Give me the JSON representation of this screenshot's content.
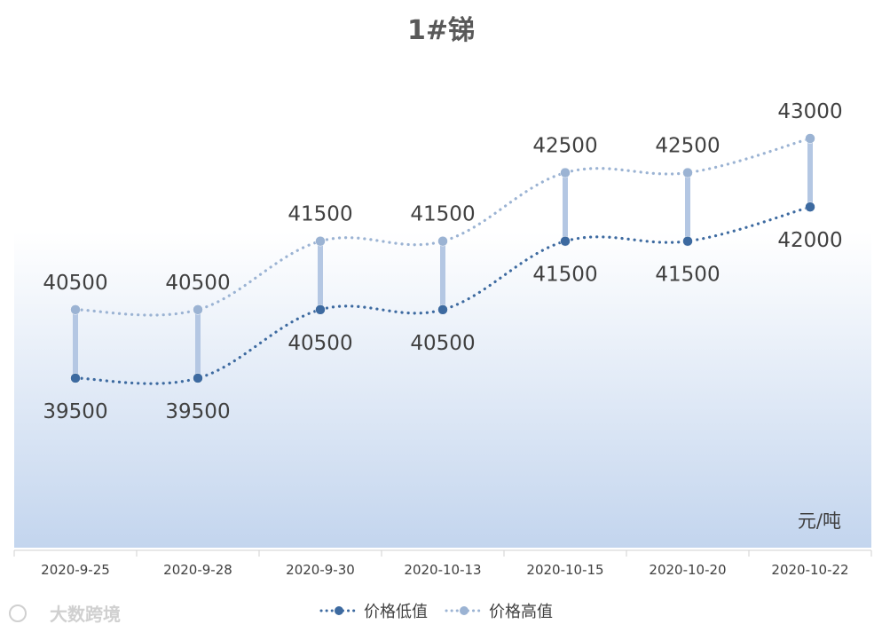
{
  "chart_data": {
    "type": "line",
    "title": "1#锑",
    "unit": "元/吨",
    "categories": [
      "2020-9-25",
      "2020-9-28",
      "2020-9-30",
      "2020-10-13",
      "2020-10-15",
      "2020-10-20",
      "2020-10-22"
    ],
    "series": [
      {
        "name": "价格低值",
        "values": [
          39500,
          39500,
          40500,
          40500,
          41500,
          41500,
          42000
        ],
        "color": "#3d6aa0"
      },
      {
        "name": "价格高值",
        "values": [
          40500,
          40500,
          41500,
          41500,
          42500,
          42500,
          43000
        ],
        "color": "#9bb3d3"
      }
    ],
    "high_low_lines": true,
    "line_style": "dotted-smooth",
    "legend_position": "bottom"
  },
  "watermark": "大数跨境",
  "colors": {
    "bg_gradient_top": "#ffffff",
    "bg_gradient_bottom": "#c3d5ee",
    "high_low_line": "#b4c7e3"
  }
}
